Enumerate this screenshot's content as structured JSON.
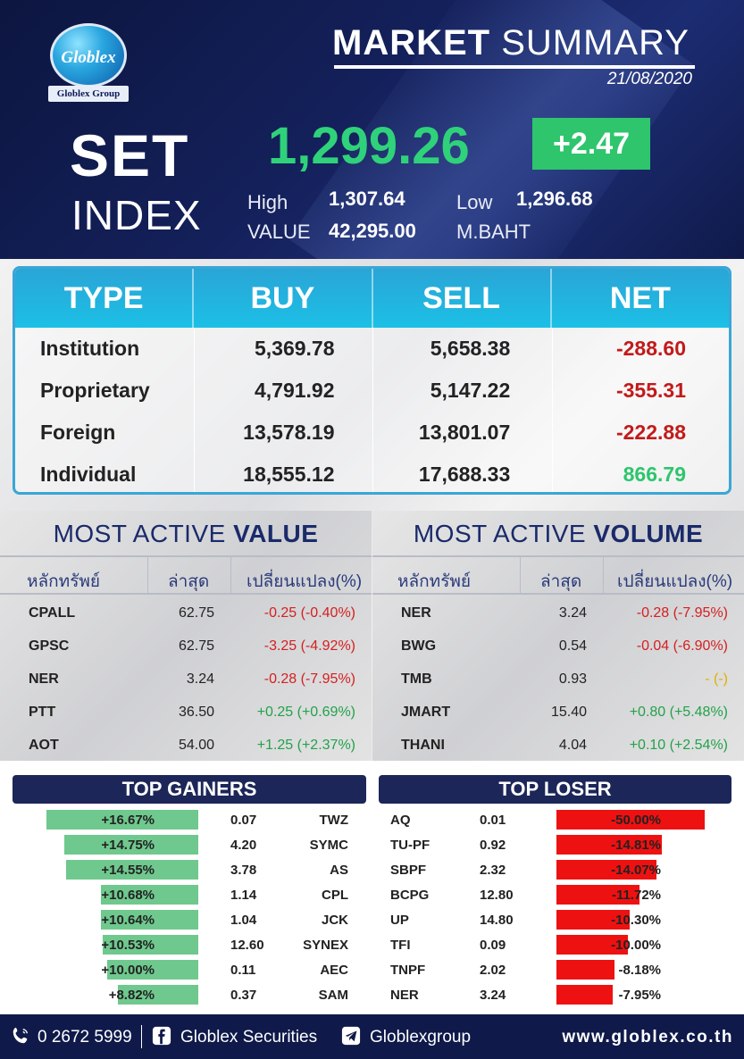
{
  "header": {
    "logo_name": "Globlex",
    "logo_group": "Globlex Group",
    "title_bold": "MARKET",
    "title_light": "SUMMARY",
    "date": "21/08/2020",
    "set_label": "SET",
    "index_label": "INDEX",
    "index_value": "1,299.26",
    "change": "+2.47",
    "high_label": "High",
    "high_value": "1,307.64",
    "low_label": "Low",
    "low_value": "1,296.68",
    "value_label": "VALUE",
    "value_value": "42,295.00",
    "unit_label": "M.BAHT",
    "accent": "#2fd27a"
  },
  "flows": {
    "headers": [
      "TYPE",
      "BUY",
      "SELL",
      "NET"
    ],
    "rows": [
      {
        "type": "Institution",
        "buy": "5,369.78",
        "sell": "5,658.38",
        "net": "-288.60",
        "sign": "neg"
      },
      {
        "type": "Proprietary",
        "buy": "4,791.92",
        "sell": "5,147.22",
        "net": "-355.31",
        "sign": "neg"
      },
      {
        "type": "Foreign",
        "buy": "13,578.19",
        "sell": "13,801.07",
        "net": "-222.88",
        "sign": "neg"
      },
      {
        "type": "Individual",
        "buy": "18,555.12",
        "sell": "17,688.33",
        "net": "866.79",
        "sign": "pos"
      }
    ]
  },
  "most_active_value": {
    "title_light": "MOST ACTIVE",
    "title_bold": "VALUE",
    "columns": [
      "หลักทรัพย์",
      "ล่าสุด",
      "เปลี่ยนแปลง(%)"
    ],
    "rows": [
      {
        "symbol": "CPALL",
        "last": "62.75",
        "change": "-0.25 (-0.40%)",
        "dir": "red"
      },
      {
        "symbol": "GPSC",
        "last": "62.75",
        "change": "-3.25 (-4.92%)",
        "dir": "red"
      },
      {
        "symbol": "NER",
        "last": "3.24",
        "change": "-0.28 (-7.95%)",
        "dir": "red"
      },
      {
        "symbol": "PTT",
        "last": "36.50",
        "change": "+0.25 (+0.69%)",
        "dir": "grn"
      },
      {
        "symbol": "AOT",
        "last": "54.00",
        "change": "+1.25 (+2.37%)",
        "dir": "grn"
      }
    ]
  },
  "most_active_volume": {
    "title_light": "MOST ACTIVE",
    "title_bold": "VOLUME",
    "columns": [
      "หลักทรัพย์",
      "ล่าสุด",
      "เปลี่ยนแปลง(%)"
    ],
    "rows": [
      {
        "symbol": "NER",
        "last": "3.24",
        "change": "-0.28 (-7.95%)",
        "dir": "red"
      },
      {
        "symbol": "BWG",
        "last": "0.54",
        "change": "-0.04 (-6.90%)",
        "dir": "red"
      },
      {
        "symbol": "TMB",
        "last": "0.93",
        "change": "- (-)",
        "dir": "yel"
      },
      {
        "symbol": "JMART",
        "last": "15.40",
        "change": "+0.80 (+5.48%)",
        "dir": "grn"
      },
      {
        "symbol": "THANI",
        "last": "4.04",
        "change": "+0.10 (+2.54%)",
        "dir": "grn"
      }
    ]
  },
  "top_gainers": {
    "title": "TOP GAINERS",
    "rows": [
      {
        "pct": "+16.67%",
        "price": "0.07",
        "symbol": "TWZ",
        "level": 16.67
      },
      {
        "pct": "+14.75%",
        "price": "4.20",
        "symbol": "SYMC",
        "level": 14.75
      },
      {
        "pct": "+14.55%",
        "price": "3.78",
        "symbol": "AS",
        "level": 14.55
      },
      {
        "pct": "+10.68%",
        "price": "1.14",
        "symbol": "CPL",
        "level": 10.68
      },
      {
        "pct": "+10.64%",
        "price": "1.04",
        "symbol": "JCK",
        "level": 10.64
      },
      {
        "pct": "+10.53%",
        "price": "12.60",
        "symbol": "SYNEX",
        "level": 10.53
      },
      {
        "pct": "+10.00%",
        "price": "0.11",
        "symbol": "AEC",
        "level": 10.0
      },
      {
        "pct": "+8.82%",
        "price": "0.37",
        "symbol": "SAM",
        "level": 8.82
      }
    ]
  },
  "top_losers": {
    "title": "TOP LOSER",
    "rows": [
      {
        "symbol": "AQ",
        "price": "0.01",
        "pct": "-50.00%",
        "level": 50.0
      },
      {
        "symbol": "TU-PF",
        "price": "0.92",
        "pct": "-14.81%",
        "level": 14.81
      },
      {
        "symbol": "SBPF",
        "price": "2.32",
        "pct": "-14.07%",
        "level": 14.07
      },
      {
        "symbol": "BCPG",
        "price": "12.80",
        "pct": "-11.72%",
        "level": 11.72
      },
      {
        "symbol": "UP",
        "price": "14.80",
        "pct": "-10.30%",
        "level": 10.3
      },
      {
        "symbol": "TFI",
        "price": "0.09",
        "pct": "-10.00%",
        "level": 10.0
      },
      {
        "symbol": "TNPF",
        "price": "2.02",
        "pct": "-8.18%",
        "level": 8.18
      },
      {
        "symbol": "NER",
        "price": "3.24",
        "pct": "-7.95%",
        "level": 7.95
      }
    ]
  },
  "footer": {
    "phone": "0 2672 5999",
    "facebook": "Globlex Securities",
    "telegram": "Globlexgroup",
    "website": "www.globlex.co.th",
    "icons": [
      "phone-icon",
      "facebook-icon",
      "send-icon"
    ]
  }
}
